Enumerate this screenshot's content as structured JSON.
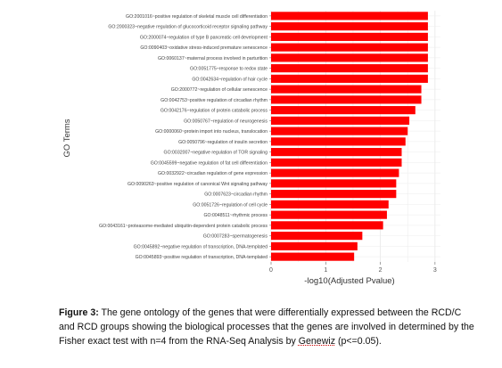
{
  "chart_data": {
    "type": "bar",
    "orientation": "horizontal",
    "xlabel": "-log10(Adjusted Pvalue)",
    "ylabel": "GO Terms",
    "xlim": [
      0,
      3.1
    ],
    "xticks": [
      0,
      1,
      2,
      3
    ],
    "grid": true,
    "bar_color": "#ff0000",
    "categories": [
      "GO:2001016~positive regulation of skeletal muscle cell differentiation",
      "GO:2000323~negative regulation of glucocorticoid receptor signaling pathway",
      "GO:2000074~regulation of type B pancreatic cell development",
      "GO:0090403~oxidative stress-induced premature senescence",
      "GO:0060137~maternal process involved in parturition",
      "GO:0051775~response to redox state",
      "GO:0042634~regulation of hair cycle",
      "GO:2000772~regulation of cellular senescence",
      "GO:0042753~positive regulation of circadian rhythm",
      "GO:0042176~regulation of protein catabolic process",
      "GO:0050767~regulation of neurogenesis",
      "GO:0000060~protein import into nucleus, translocation",
      "GO:0050796~regulation of insulin secretion",
      "GO:0032007~negative regulation of TOR signaling",
      "GO:0045599~negative regulation of fat cell differentiation",
      "GO:0032922~circadian regulation of gene expression",
      "GO:0090263~positive regulation of canonical Wnt signaling pathway",
      "GO:0007623~circadian rhythm",
      "GO:0051726~regulation of cell cycle",
      "GO:0048511~rhythmic process",
      "GO:0043161~proteasome-mediated ubiquitin-dependent protein catabolic process",
      "GO:0007283~spermatogenesis",
      "GO:0045892~negative regulation of transcription, DNA-templated",
      "GO:0045893~positive regulation of transcription, DNA-templated"
    ],
    "values": [
      2.87,
      2.87,
      2.87,
      2.87,
      2.87,
      2.87,
      2.87,
      2.75,
      2.75,
      2.64,
      2.53,
      2.5,
      2.46,
      2.39,
      2.39,
      2.34,
      2.29,
      2.29,
      2.15,
      2.12,
      2.05,
      1.67,
      1.58,
      1.52
    ]
  },
  "caption": {
    "label": "Figure 3:",
    "text_part1": " The gene ontology of the genes that were differentially expressed between the RCD/C and RCD groups showing the biological processes that the genes are involved in determined by the Fisher exact test with n=4 from the RNA-Seq Analysis by ",
    "company": "Genewiz",
    "text_part2": " (p<=0.05)."
  }
}
